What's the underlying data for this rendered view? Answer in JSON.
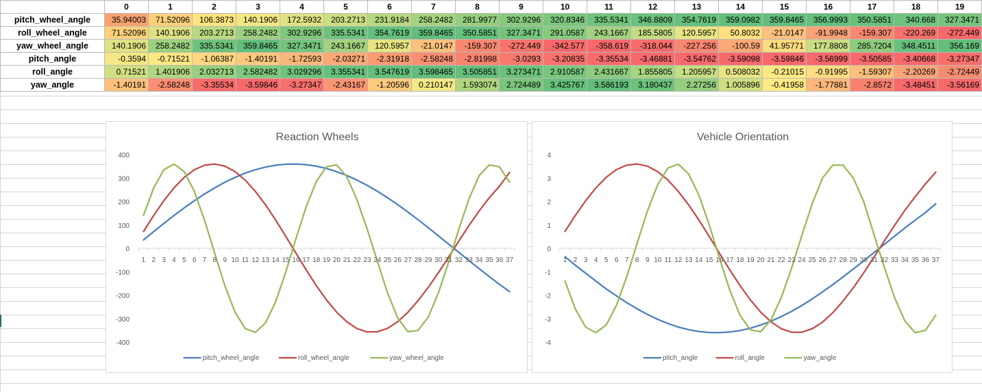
{
  "columns": [
    "0",
    "1",
    "2",
    "3",
    "4",
    "5",
    "6",
    "7",
    "8",
    "9",
    "10",
    "11",
    "12",
    "13",
    "14",
    "15",
    "16",
    "17",
    "18",
    "19"
  ],
  "rows": [
    {
      "name": "pitch_wheel_angle",
      "cells": [
        {
          "v": "35.94003",
          "c": "#f8a26f"
        },
        {
          "v": "71.52096",
          "c": "#fcd07b"
        },
        {
          "v": "106.3873",
          "c": "#fce37e"
        },
        {
          "v": "140.1906",
          "c": "#f3e783"
        },
        {
          "v": "172.5932",
          "c": "#dfe283"
        },
        {
          "v": "203.2713",
          "c": "#cade82"
        },
        {
          "v": "231.9184",
          "c": "#b7d880"
        },
        {
          "v": "258.2482",
          "c": "#a5d37f"
        },
        {
          "v": "281.9977",
          "c": "#95ce7e"
        },
        {
          "v": "302.9296",
          "c": "#87ca7d"
        },
        {
          "v": "320.8346",
          "c": "#7bc67c"
        },
        {
          "v": "335.5341",
          "c": "#71c47c"
        },
        {
          "v": "346.8809",
          "c": "#6ac27b"
        },
        {
          "v": "354.7619",
          "c": "#65c17b"
        },
        {
          "v": "359.0982",
          "c": "#63be7b"
        },
        {
          "v": "359.8465",
          "c": "#63be7b"
        },
        {
          "v": "356.9993",
          "c": "#64bf7b"
        },
        {
          "v": "350.5851",
          "c": "#68c17b"
        },
        {
          "v": "340.668",
          "c": "#6ec37c"
        },
        {
          "v": "327.3471",
          "c": "#77c57c"
        }
      ]
    },
    {
      "name": "roll_wheel_angle",
      "cells": [
        {
          "v": "71.52096",
          "c": "#fcd07b"
        },
        {
          "v": "140.1906",
          "c": "#dce183"
        },
        {
          "v": "203.2713",
          "c": "#b9d980"
        },
        {
          "v": "258.2482",
          "c": "#9ad07e"
        },
        {
          "v": "302.9296",
          "c": "#80c77c"
        },
        {
          "v": "335.5341",
          "c": "#6ec37c"
        },
        {
          "v": "354.7619",
          "c": "#65c07b"
        },
        {
          "v": "359.8465",
          "c": "#63be7b"
        },
        {
          "v": "350.5851",
          "c": "#67c07b"
        },
        {
          "v": "327.3471",
          "c": "#74c47c"
        },
        {
          "v": "291.0587",
          "c": "#88ca7d"
        },
        {
          "v": "243.1667",
          "c": "#a3d27f"
        },
        {
          "v": "185.5805",
          "c": "#c3dc81"
        },
        {
          "v": "120.5957",
          "c": "#e7e483"
        },
        {
          "v": "50.8032",
          "c": "#fee080"
        },
        {
          "v": "-21.0147",
          "c": "#fdc27d"
        },
        {
          "v": "-91.9948",
          "c": "#fba276"
        },
        {
          "v": "-159.307",
          "c": "#f98870"
        },
        {
          "v": "-220.269",
          "c": "#f8736d"
        },
        {
          "v": "-272.449",
          "c": "#f8696b"
        }
      ]
    },
    {
      "name": "yaw_wheel_angle",
      "cells": [
        {
          "v": "140.1906",
          "c": "#dfe283"
        },
        {
          "v": "258.2482",
          "c": "#9ad07e"
        },
        {
          "v": "335.5341",
          "c": "#6ec37c"
        },
        {
          "v": "359.8465",
          "c": "#63be7b"
        },
        {
          "v": "327.3471",
          "c": "#74c47c"
        },
        {
          "v": "243.1667",
          "c": "#a3d27f"
        },
        {
          "v": "120.5957",
          "c": "#e7e483"
        },
        {
          "v": "-21.0147",
          "c": "#fdc27d"
        },
        {
          "v": "-159.307",
          "c": "#f98870"
        },
        {
          "v": "-272.449",
          "c": "#f8746d"
        },
        {
          "v": "-342.577",
          "c": "#f8696b"
        },
        {
          "v": "-358.619",
          "c": "#f8696b"
        },
        {
          "v": "-318.044",
          "c": "#f86d6c"
        },
        {
          "v": "-227.256",
          "c": "#f9866f"
        },
        {
          "v": "-100.59",
          "c": "#fba977"
        },
        {
          "v": "41.95771",
          "c": "#fedc81"
        },
        {
          "v": "177.8808",
          "c": "#c9de82"
        },
        {
          "v": "285.7204",
          "c": "#8dcb7d"
        },
        {
          "v": "348.4511",
          "c": "#68c07b"
        },
        {
          "v": "356.169",
          "c": "#64bf7b"
        }
      ]
    },
    {
      "name": "pitch_angle",
      "cells": [
        {
          "v": "-0.3594",
          "c": "#f4e884"
        },
        {
          "v": "-0.71521",
          "c": "#fde883"
        },
        {
          "v": "-1.06387",
          "c": "#fed880"
        },
        {
          "v": "-1.40191",
          "c": "#fdc87d"
        },
        {
          "v": "-1.72593",
          "c": "#fcb87a"
        },
        {
          "v": "-2.03271",
          "c": "#fba977"
        },
        {
          "v": "-2.31918",
          "c": "#fa9b74"
        },
        {
          "v": "-2.58248",
          "c": "#f98e72"
        },
        {
          "v": "-2.81998",
          "c": "#f9836f"
        },
        {
          "v": "-3.0293",
          "c": "#f8796e"
        },
        {
          "v": "-3.20835",
          "c": "#f8716c"
        },
        {
          "v": "-3.35534",
          "c": "#f86b6b"
        },
        {
          "v": "-3.46881",
          "c": "#f8696b"
        },
        {
          "v": "-3.54762",
          "c": "#f8696b"
        },
        {
          "v": "-3.59098",
          "c": "#f8696b"
        },
        {
          "v": "-3.59846",
          "c": "#f8696b"
        },
        {
          "v": "-3.56999",
          "c": "#f8696b"
        },
        {
          "v": "-3.50585",
          "c": "#f8696b"
        },
        {
          "v": "-3.40668",
          "c": "#f86a6b"
        },
        {
          "v": "-3.27347",
          "c": "#f86f6c"
        }
      ]
    },
    {
      "name": "roll_angle",
      "cells": [
        {
          "v": "0.71521",
          "c": "#cfdf82"
        },
        {
          "v": "1.401906",
          "c": "#b1d67f"
        },
        {
          "v": "2.032713",
          "c": "#96cf7e"
        },
        {
          "v": "2.582482",
          "c": "#80c87c"
        },
        {
          "v": "3.029296",
          "c": "#6fc37c"
        },
        {
          "v": "3.355341",
          "c": "#66c07b"
        },
        {
          "v": "3.547619",
          "c": "#63be7b"
        },
        {
          "v": "3.598465",
          "c": "#63be7b"
        },
        {
          "v": "3.505851",
          "c": "#64bf7b"
        },
        {
          "v": "3.273471",
          "c": "#6bc27b"
        },
        {
          "v": "2.910587",
          "c": "#79c67c"
        },
        {
          "v": "2.431667",
          "c": "#8dcb7d"
        },
        {
          "v": "1.855805",
          "c": "#a7d47f"
        },
        {
          "v": "1.205957",
          "c": "#c5dd81"
        },
        {
          "v": "0.508032",
          "c": "#e6e483"
        },
        {
          "v": "-0.21015",
          "c": "#feea83"
        },
        {
          "v": "-0.91995",
          "c": "#fedc81"
        },
        {
          "v": "-1.59307",
          "c": "#fcc07b"
        },
        {
          "v": "-2.20269",
          "c": "#fba577"
        },
        {
          "v": "-2.72449",
          "c": "#f98d71"
        }
      ]
    },
    {
      "name": "yaw_angle",
      "cells": [
        {
          "v": "-1.40191",
          "c": "#fcc07b"
        },
        {
          "v": "-2.58248",
          "c": "#f98e72"
        },
        {
          "v": "-3.35534",
          "c": "#f86c6b"
        },
        {
          "v": "-3.59846",
          "c": "#f8696b"
        },
        {
          "v": "-3.27347",
          "c": "#f8706c"
        },
        {
          "v": "-2.43167",
          "c": "#fa9573"
        },
        {
          "v": "-1.20596",
          "c": "#fdca7e"
        },
        {
          "v": "0.210147",
          "c": "#f3e884"
        },
        {
          "v": "1.593074",
          "c": "#b0d57f"
        },
        {
          "v": "2.724489",
          "c": "#7bc67c"
        },
        {
          "v": "3.425767",
          "c": "#66c07b"
        },
        {
          "v": "3.586193",
          "c": "#63be7b"
        },
        {
          "v": "3.180437",
          "c": "#6dc27c"
        },
        {
          "v": "2.27256",
          "c": "#94ce7e"
        },
        {
          "v": "1.005896",
          "c": "#cedf82"
        },
        {
          "v": "-0.41958",
          "c": "#feeb84"
        },
        {
          "v": "-1.77881",
          "c": "#fcb87a"
        },
        {
          "v": "-2.8572",
          "c": "#f9826f"
        },
        {
          "v": "-3.48451",
          "c": "#f8696b"
        },
        {
          "v": "-3.56169",
          "c": "#f8696b"
        }
      ]
    }
  ],
  "chart_data": [
    {
      "type": "line",
      "title": "Reaction Wheels",
      "xlabel": "",
      "ylabel": "",
      "ylim": [
        -400,
        400
      ],
      "yticks": [
        -400,
        -300,
        -200,
        -100,
        0,
        100,
        200,
        300,
        400
      ],
      "categories": [
        "1",
        "2",
        "3",
        "4",
        "5",
        "6",
        "7",
        "8",
        "9",
        "10",
        "11",
        "12",
        "13",
        "14",
        "15",
        "16",
        "17",
        "18",
        "19",
        "20",
        "21",
        "22",
        "23",
        "24",
        "25",
        "26",
        "27",
        "28",
        "29",
        "30",
        "31",
        "32",
        "33",
        "34",
        "35",
        "36",
        "37"
      ],
      "legend": "bottom",
      "grid": false,
      "series": [
        {
          "name": "pitch_wheel_angle",
          "color": "#4a7ebb",
          "values": [
            35.9,
            71.5,
            106.4,
            140.2,
            172.6,
            203.3,
            231.9,
            258.2,
            282.0,
            302.9,
            320.8,
            335.5,
            346.9,
            354.8,
            359.1,
            359.8,
            357.0,
            350.6,
            340.7,
            327.3,
            310.8,
            291.1,
            268.6,
            243.5,
            216.0,
            186.4,
            155.0,
            122.2,
            88.2,
            53.5,
            18.3,
            -16.9,
            -51.9,
            -86.5,
            -120.4,
            -153.3,
            -184.8
          ]
        },
        {
          "name": "roll_wheel_angle",
          "color": "#be4b48",
          "values": [
            71.5,
            140.2,
            203.3,
            258.2,
            302.9,
            335.5,
            354.8,
            359.8,
            350.6,
            327.3,
            291.1,
            243.2,
            185.6,
            120.6,
            50.8,
            -21.0,
            -92.0,
            -159.3,
            -220.3,
            -272.4,
            -313.5,
            -342.6,
            -357.0,
            -356.3,
            -341.3,
            -313.0,
            -273.0,
            -223.5,
            -166.7,
            -104.2,
            -37.4,
            30.3,
            96.6,
            159.0,
            215.6,
            264.8,
            324.0
          ]
        },
        {
          "name": "yaw_wheel_angle",
          "color": "#98b954",
          "values": [
            140.2,
            258.2,
            335.5,
            359.8,
            327.3,
            243.2,
            120.6,
            -21.0,
            -159.3,
            -272.4,
            -342.6,
            -358.6,
            -318.0,
            -227.3,
            -100.6,
            42.0,
            177.9,
            285.7,
            348.5,
            356.2,
            305.0,
            206.8,
            80.9,
            -55.0,
            -190.0,
            -297.4,
            -355.2,
            -350.8,
            -293.5,
            -190.0,
            -60.0,
            80.0,
            210.0,
            310.0,
            356.0,
            348.0,
            283.0
          ]
        }
      ]
    },
    {
      "type": "line",
      "title": "Vehicle Orientation",
      "xlabel": "",
      "ylabel": "",
      "ylim": [
        -4,
        4
      ],
      "yticks": [
        -4,
        -3,
        -2,
        -1,
        0,
        1,
        2,
        3,
        4
      ],
      "categories": [
        "1",
        "2",
        "3",
        "4",
        "5",
        "6",
        "7",
        "8",
        "9",
        "10",
        "11",
        "12",
        "13",
        "14",
        "15",
        "16",
        "17",
        "18",
        "19",
        "20",
        "21",
        "22",
        "23",
        "24",
        "25",
        "26",
        "27",
        "28",
        "29",
        "30",
        "31",
        "32",
        "33",
        "34",
        "35",
        "36",
        "37"
      ],
      "legend": "bottom",
      "grid": false,
      "series": [
        {
          "name": "pitch_angle",
          "color": "#4a7ebb",
          "values": [
            -0.36,
            -0.72,
            -1.06,
            -1.4,
            -1.73,
            -2.03,
            -2.32,
            -2.58,
            -2.82,
            -3.03,
            -3.21,
            -3.36,
            -3.47,
            -3.55,
            -3.59,
            -3.6,
            -3.57,
            -3.51,
            -3.41,
            -3.27,
            -3.11,
            -2.91,
            -2.69,
            -2.44,
            -2.16,
            -1.86,
            -1.55,
            -1.22,
            -0.88,
            -0.54,
            -0.18,
            0.17,
            0.52,
            0.87,
            1.2,
            1.53,
            1.9
          ]
        },
        {
          "name": "roll_angle",
          "color": "#be4b48",
          "values": [
            0.72,
            1.4,
            2.03,
            2.58,
            3.03,
            3.36,
            3.55,
            3.6,
            3.51,
            3.27,
            2.91,
            2.43,
            1.86,
            1.21,
            0.51,
            -0.21,
            -0.92,
            -1.59,
            -2.2,
            -2.72,
            -3.14,
            -3.43,
            -3.58,
            -3.58,
            -3.43,
            -3.15,
            -2.75,
            -2.25,
            -1.68,
            -1.05,
            -0.38,
            0.31,
            0.98,
            1.62,
            2.2,
            2.75,
            3.25
          ]
        },
        {
          "name": "yaw_angle",
          "color": "#98b954",
          "values": [
            -1.4,
            -2.58,
            -3.36,
            -3.6,
            -3.27,
            -2.43,
            -1.21,
            0.21,
            1.59,
            2.72,
            3.43,
            3.59,
            3.18,
            2.27,
            1.01,
            -0.42,
            -1.78,
            -2.86,
            -3.48,
            -3.56,
            -3.05,
            -2.1,
            -0.85,
            0.55,
            1.9,
            3.0,
            3.55,
            3.55,
            3.0,
            2.0,
            0.6,
            -0.8,
            -2.1,
            -3.1,
            -3.6,
            -3.5,
            -2.85
          ]
        }
      ]
    }
  ]
}
